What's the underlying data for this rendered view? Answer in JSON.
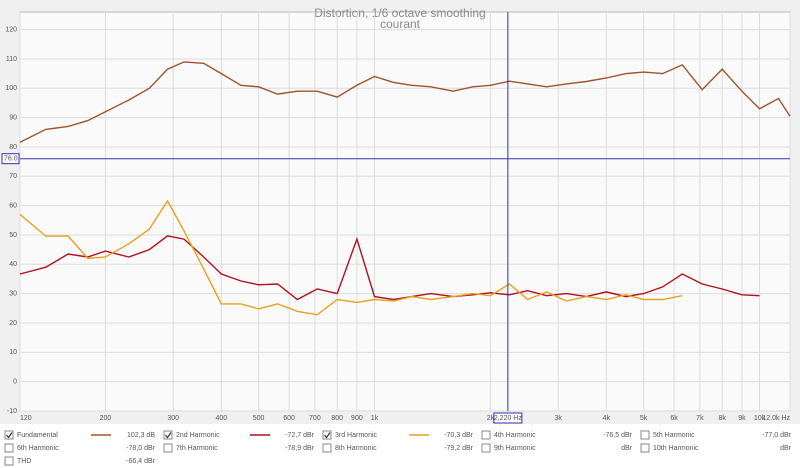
{
  "chart_data": {
    "type": "line",
    "title": "Distortion, 1/6 octave smoothing",
    "subtitle": "courant",
    "x": [
      120,
      140,
      160,
      180,
      200,
      230,
      260,
      290,
      320,
      360,
      400,
      450,
      500,
      560,
      630,
      710,
      800,
      900,
      1000,
      1120,
      1250,
      1400,
      1600,
      1800,
      2000,
      2240,
      2500,
      2800,
      3150,
      3550,
      4000,
      4500,
      5000,
      5600,
      6300,
      7100,
      8000,
      9000,
      10000,
      11200,
      12000
    ],
    "xlim": [
      120,
      12000
    ],
    "xscale": "log",
    "xticks": [
      120,
      200,
      300,
      400,
      500,
      600,
      700,
      800,
      900,
      {
        "value": 1000,
        "label": "1k"
      },
      {
        "value": 2000,
        "label": "2k"
      },
      {
        "value": 3000,
        "label": "3k"
      },
      {
        "value": 4000,
        "label": "4k"
      },
      {
        "value": 5000,
        "label": "5k"
      },
      {
        "value": 6000,
        "label": "6k"
      },
      {
        "value": 7000,
        "label": "7k"
      },
      {
        "value": 8000,
        "label": "8k"
      },
      {
        "value": 9000,
        "label": "9k"
      },
      {
        "value": 10000,
        "label": "10k"
      },
      {
        "value": 12000,
        "label": "12.0k Hz"
      }
    ],
    "ylim": [
      -10,
      126
    ],
    "yticks": [
      -10,
      0,
      10,
      20,
      30,
      40,
      50,
      60,
      70,
      80,
      90,
      100,
      110,
      120
    ],
    "grid": true,
    "series": [
      {
        "name": "Fundamental",
        "color": "#a0522d",
        "checked": true,
        "reading": "102,3 dB",
        "values": [
          81.6,
          86,
          87,
          89,
          92,
          96,
          100,
          106.5,
          109,
          108.5,
          105,
          101,
          100.5,
          98,
          99,
          99,
          97,
          101,
          104,
          102,
          101,
          100.5,
          99,
          100.5,
          101,
          102.4,
          101.5,
          100.5,
          101.5,
          102.3,
          103.5,
          105,
          105.5,
          105,
          108,
          99.5,
          106.5,
          99,
          93,
          96.5,
          90.5
        ]
      },
      {
        "name": "2nd Harmonic",
        "color": "#b01020",
        "checked": true,
        "reading": "-72,7 dBr",
        "values": [
          36.7,
          39,
          43.5,
          42.5,
          44.5,
          42.5,
          45,
          49.7,
          48.6,
          42.5,
          36.7,
          34.3,
          33,
          33.3,
          28,
          31.6,
          30,
          48.6,
          29,
          28,
          29,
          30,
          29,
          29.6,
          30.3,
          29.6,
          31,
          29.3,
          30,
          29,
          30.6,
          29,
          30,
          32.3,
          36.7,
          33.3,
          31.6,
          29.6,
          29.3,
          null,
          null
        ]
      },
      {
        "name": "3rd Harmonic",
        "color": "#e8a020",
        "checked": true,
        "reading": "-70,3 dBr",
        "values": [
          57,
          49.6,
          49.6,
          42,
          42.5,
          47,
          52,
          61.6,
          51.4,
          38.4,
          26.5,
          26.5,
          24.8,
          26.5,
          24,
          22.8,
          28,
          27,
          28,
          27.5,
          29,
          28,
          29,
          30,
          29.3,
          33.3,
          28,
          30.6,
          27.5,
          29,
          28,
          29.6,
          28,
          28,
          29.3,
          null,
          null,
          null,
          null,
          null,
          null
        ]
      }
    ],
    "other_traces": [
      {
        "name": "4th Harmonic",
        "color": "#c8b060",
        "checked": false,
        "reading": "-76,5 dBr"
      },
      {
        "name": "5th Harmonic",
        "color": "#a0c040",
        "checked": false,
        "reading": "-77,0 dBr"
      },
      {
        "name": "6th Harmonic",
        "color": "#4a7ae0",
        "checked": false,
        "reading": "-78,0 dBr"
      },
      {
        "name": "7th Harmonic",
        "color": "#e050e0",
        "checked": false,
        "reading": "-78,9 dBr"
      },
      {
        "name": "8th Harmonic",
        "color": "#909090",
        "checked": false,
        "reading": "-79,2 dBr"
      },
      {
        "name": "9th Harmonic",
        "color": "#20b0c8",
        "checked": false,
        "reading": "dBr"
      },
      {
        "name": "10th Harmonic",
        "color": "#808000",
        "checked": false,
        "reading": "dBr"
      },
      {
        "name": "THD",
        "color": "#404040",
        "checked": false,
        "reading": "-66,4 dBr"
      }
    ],
    "cursor_x": {
      "value": 2220,
      "label": "2,220 Hz"
    },
    "cursor_y": {
      "value": 76,
      "label": "76.0"
    }
  }
}
